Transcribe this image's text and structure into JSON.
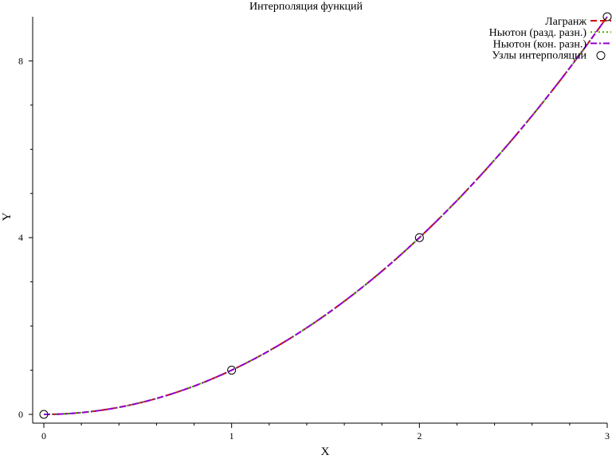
{
  "chart_data": {
    "type": "line",
    "title": "Интерполяция функций",
    "xlabel": "X",
    "ylabel": "Y",
    "xlim": [
      0,
      3
    ],
    "ylim": [
      0,
      9
    ],
    "x_ticks": [
      0,
      1,
      2,
      3
    ],
    "y_ticks": [
      0,
      4,
      8
    ],
    "grid": false,
    "legend_position": "top-right",
    "series": [
      {
        "name": "Лагранж",
        "style": "dashed",
        "color": "#cc0000",
        "function": "x^2"
      },
      {
        "name": "Ньютон (разд. разн.)",
        "style": "dotted",
        "color": "#44aa00",
        "function": "x^2"
      },
      {
        "name": "Ньютон (кон. разн.)",
        "style": "dashdot",
        "color": "#9400d3",
        "function": "x^2"
      }
    ],
    "nodes": {
      "name": "Узлы интерполяции",
      "x": [
        0,
        1,
        2,
        3
      ],
      "y": [
        0,
        1,
        4,
        9
      ]
    }
  }
}
